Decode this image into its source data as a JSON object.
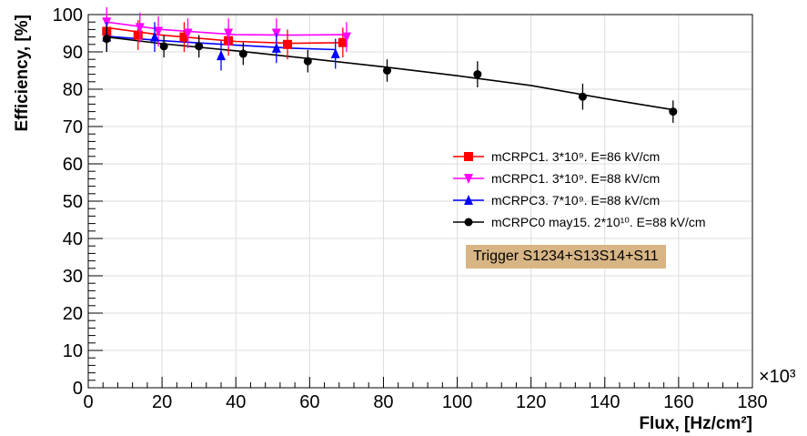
{
  "chart_data": {
    "type": "scatter",
    "title": "",
    "xlabel": "Flux, [Hz/cm²]",
    "ylabel": "Efficiency, [%]",
    "x_multiplier_label": "×10³",
    "xlim": [
      0,
      180
    ],
    "ylim": [
      0,
      100
    ],
    "x_ticks": [
      "0",
      "20",
      "40",
      "60",
      "80",
      "100",
      "120",
      "140",
      "160",
      "180"
    ],
    "y_ticks": [
      "0",
      "10",
      "20",
      "30",
      "40",
      "50",
      "60",
      "70",
      "80",
      "90",
      "100"
    ],
    "grid": true,
    "legend_position": "right",
    "series": [
      {
        "name": "mCRPC1. 3*10⁹. E=86 kV/cm",
        "color": "#ff0000",
        "marker": "square",
        "x": [
          5,
          13.5,
          26,
          38,
          54,
          69
        ],
        "y": [
          95.5,
          94.5,
          94,
          93,
          92,
          92.5
        ],
        "err": [
          4,
          4,
          4,
          4,
          4,
          4
        ],
        "fit": [
          [
            5,
            96.5
          ],
          [
            20,
            94.5
          ],
          [
            40,
            92.8
          ],
          [
            55,
            92.3
          ],
          [
            70,
            92.5
          ]
        ]
      },
      {
        "name": "mCRPC1. 3*10⁹. E=88 kV/cm",
        "color": "#ff00ff",
        "marker": "triangle-down",
        "x": [
          5,
          14,
          19,
          27,
          38,
          51,
          70
        ],
        "y": [
          98,
          96.5,
          95.5,
          95,
          95,
          95,
          94
        ],
        "err": [
          4,
          4,
          4,
          4,
          4,
          4,
          4
        ],
        "fit": [
          [
            5,
            98
          ],
          [
            20,
            96
          ],
          [
            40,
            94.6
          ],
          [
            55,
            94.5
          ],
          [
            70,
            94.6
          ]
        ]
      },
      {
        "name": "mCRPC3. 7*10⁹. E=88 kV/cm",
        "color": "#0000ff",
        "marker": "triangle-up",
        "x": [
          5,
          18,
          36,
          51,
          67
        ],
        "y": [
          94,
          94,
          89,
          91,
          89.5
        ],
        "err": [
          4,
          4,
          4,
          4,
          4
        ],
        "fit": [
          [
            5,
            94.2
          ],
          [
            20,
            93
          ],
          [
            40,
            91.8
          ],
          [
            55,
            91
          ],
          [
            67,
            90.6
          ]
        ]
      },
      {
        "name": "mCRPC0 may15. 2*10¹⁰. E=88 kV/cm",
        "color": "#000000",
        "marker": "circle",
        "x": [
          5,
          20.5,
          30,
          42,
          59.5,
          81,
          105.5,
          134,
          158.5
        ],
        "y": [
          93.5,
          91.5,
          91.5,
          89.5,
          87.5,
          85,
          84,
          78,
          74
        ],
        "err": [
          3.5,
          3,
          3,
          3,
          3,
          3,
          3.5,
          3.5,
          3
        ],
        "fit": [
          [
            5,
            94
          ],
          [
            20,
            92.2
          ],
          [
            40,
            90.3
          ],
          [
            60,
            88.2
          ],
          [
            80,
            86
          ],
          [
            100,
            83.6
          ],
          [
            120,
            81
          ],
          [
            140,
            77.5
          ],
          [
            158.5,
            74.5
          ]
        ]
      }
    ],
    "annotations": [
      {
        "text": "Trigger S1234+S13S14+S11"
      }
    ]
  }
}
